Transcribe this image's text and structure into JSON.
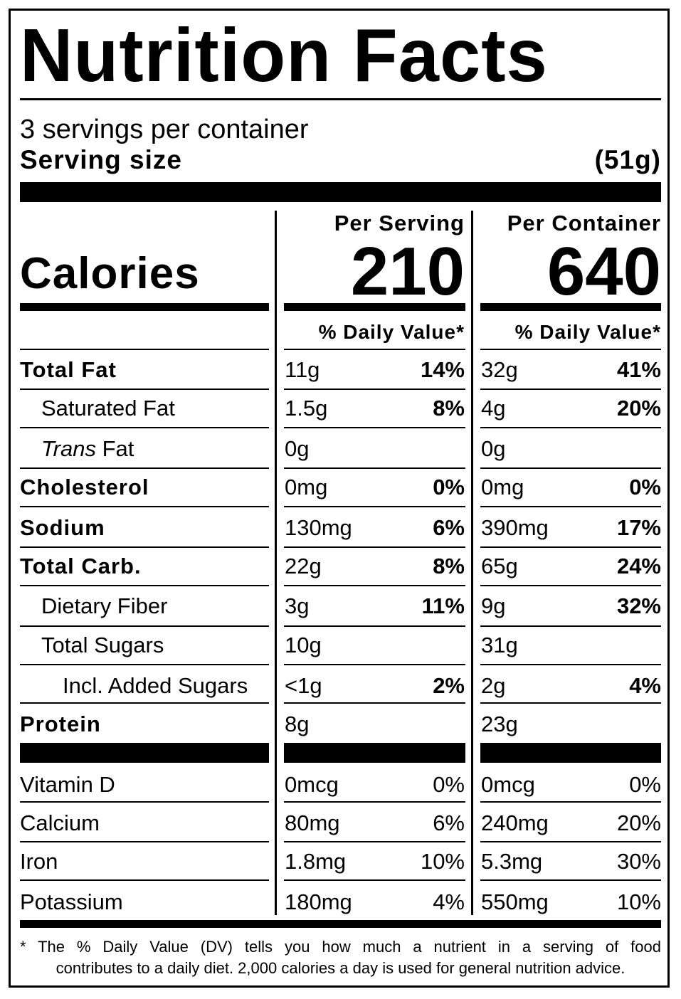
{
  "label": {
    "title": "Nutrition Facts",
    "servings_per_container": "3 servings per container",
    "serving_size_label": "Serving size",
    "serving_size_value": "(51g)",
    "col_per_serving": "Per Serving",
    "col_per_container": "Per Container",
    "calories_label": "Calories",
    "calories_per_serving": "210",
    "calories_per_container": "640",
    "dv_header": "% Daily Value*"
  },
  "nutrients": [
    {
      "label": "Total Fat",
      "bold": true,
      "indent": 0,
      "serving_amount": "11g",
      "serving_dv": "14%",
      "container_amount": "32g",
      "container_dv": "41%"
    },
    {
      "label": "Saturated Fat",
      "bold": false,
      "indent": 1,
      "serving_amount": "1.5g",
      "serving_dv": "8%",
      "container_amount": "4g",
      "container_dv": "20%"
    },
    {
      "label": "Trans Fat",
      "bold": false,
      "indent": 1,
      "italic_prefix": "Trans",
      "label_suffix": " Fat",
      "serving_amount": "0g",
      "serving_dv": "",
      "container_amount": "0g",
      "container_dv": ""
    },
    {
      "label": "Cholesterol",
      "bold": true,
      "indent": 0,
      "serving_amount": "0mg",
      "serving_dv": "0%",
      "container_amount": "0mg",
      "container_dv": "0%"
    },
    {
      "label": "Sodium",
      "bold": true,
      "indent": 0,
      "serving_amount": "130mg",
      "serving_dv": "6%",
      "container_amount": "390mg",
      "container_dv": "17%"
    },
    {
      "label": "Total Carb.",
      "bold": true,
      "indent": 0,
      "serving_amount": "22g",
      "serving_dv": "8%",
      "container_amount": "65g",
      "container_dv": "24%"
    },
    {
      "label": "Dietary Fiber",
      "bold": false,
      "indent": 1,
      "serving_amount": "3g",
      "serving_dv": "11%",
      "container_amount": "9g",
      "container_dv": "32%"
    },
    {
      "label": "Total Sugars",
      "bold": false,
      "indent": 1,
      "serving_amount": "10g",
      "serving_dv": "",
      "container_amount": "31g",
      "container_dv": ""
    },
    {
      "label": "Incl. Added Sugars",
      "bold": false,
      "indent": 2,
      "serving_amount": "<1g",
      "serving_dv": "2%",
      "container_amount": "2g",
      "container_dv": "4%"
    },
    {
      "label": "Protein",
      "bold": true,
      "indent": 0,
      "serving_amount": "8g",
      "serving_dv": "",
      "container_amount": "23g",
      "container_dv": ""
    }
  ],
  "vitamins": [
    {
      "label": "Vitamin D",
      "serving_amount": "0mcg",
      "serving_dv": "0%",
      "container_amount": "0mcg",
      "container_dv": "0%"
    },
    {
      "label": "Calcium",
      "serving_amount": "80mg",
      "serving_dv": "6%",
      "container_amount": "240mg",
      "container_dv": "20%"
    },
    {
      "label": "Iron",
      "serving_amount": "1.8mg",
      "serving_dv": "10%",
      "container_amount": "5.3mg",
      "container_dv": "30%"
    },
    {
      "label": "Potassium",
      "serving_amount": "180mg",
      "serving_dv": "4%",
      "container_amount": "550mg",
      "container_dv": "10%"
    }
  ],
  "footnote": {
    "line1": "* The % Daily Value (DV) tells you how much a nutrient in a serving of food",
    "line2": "contributes to a daily diet. 2,000 calories a day is used for general nutrition advice."
  }
}
